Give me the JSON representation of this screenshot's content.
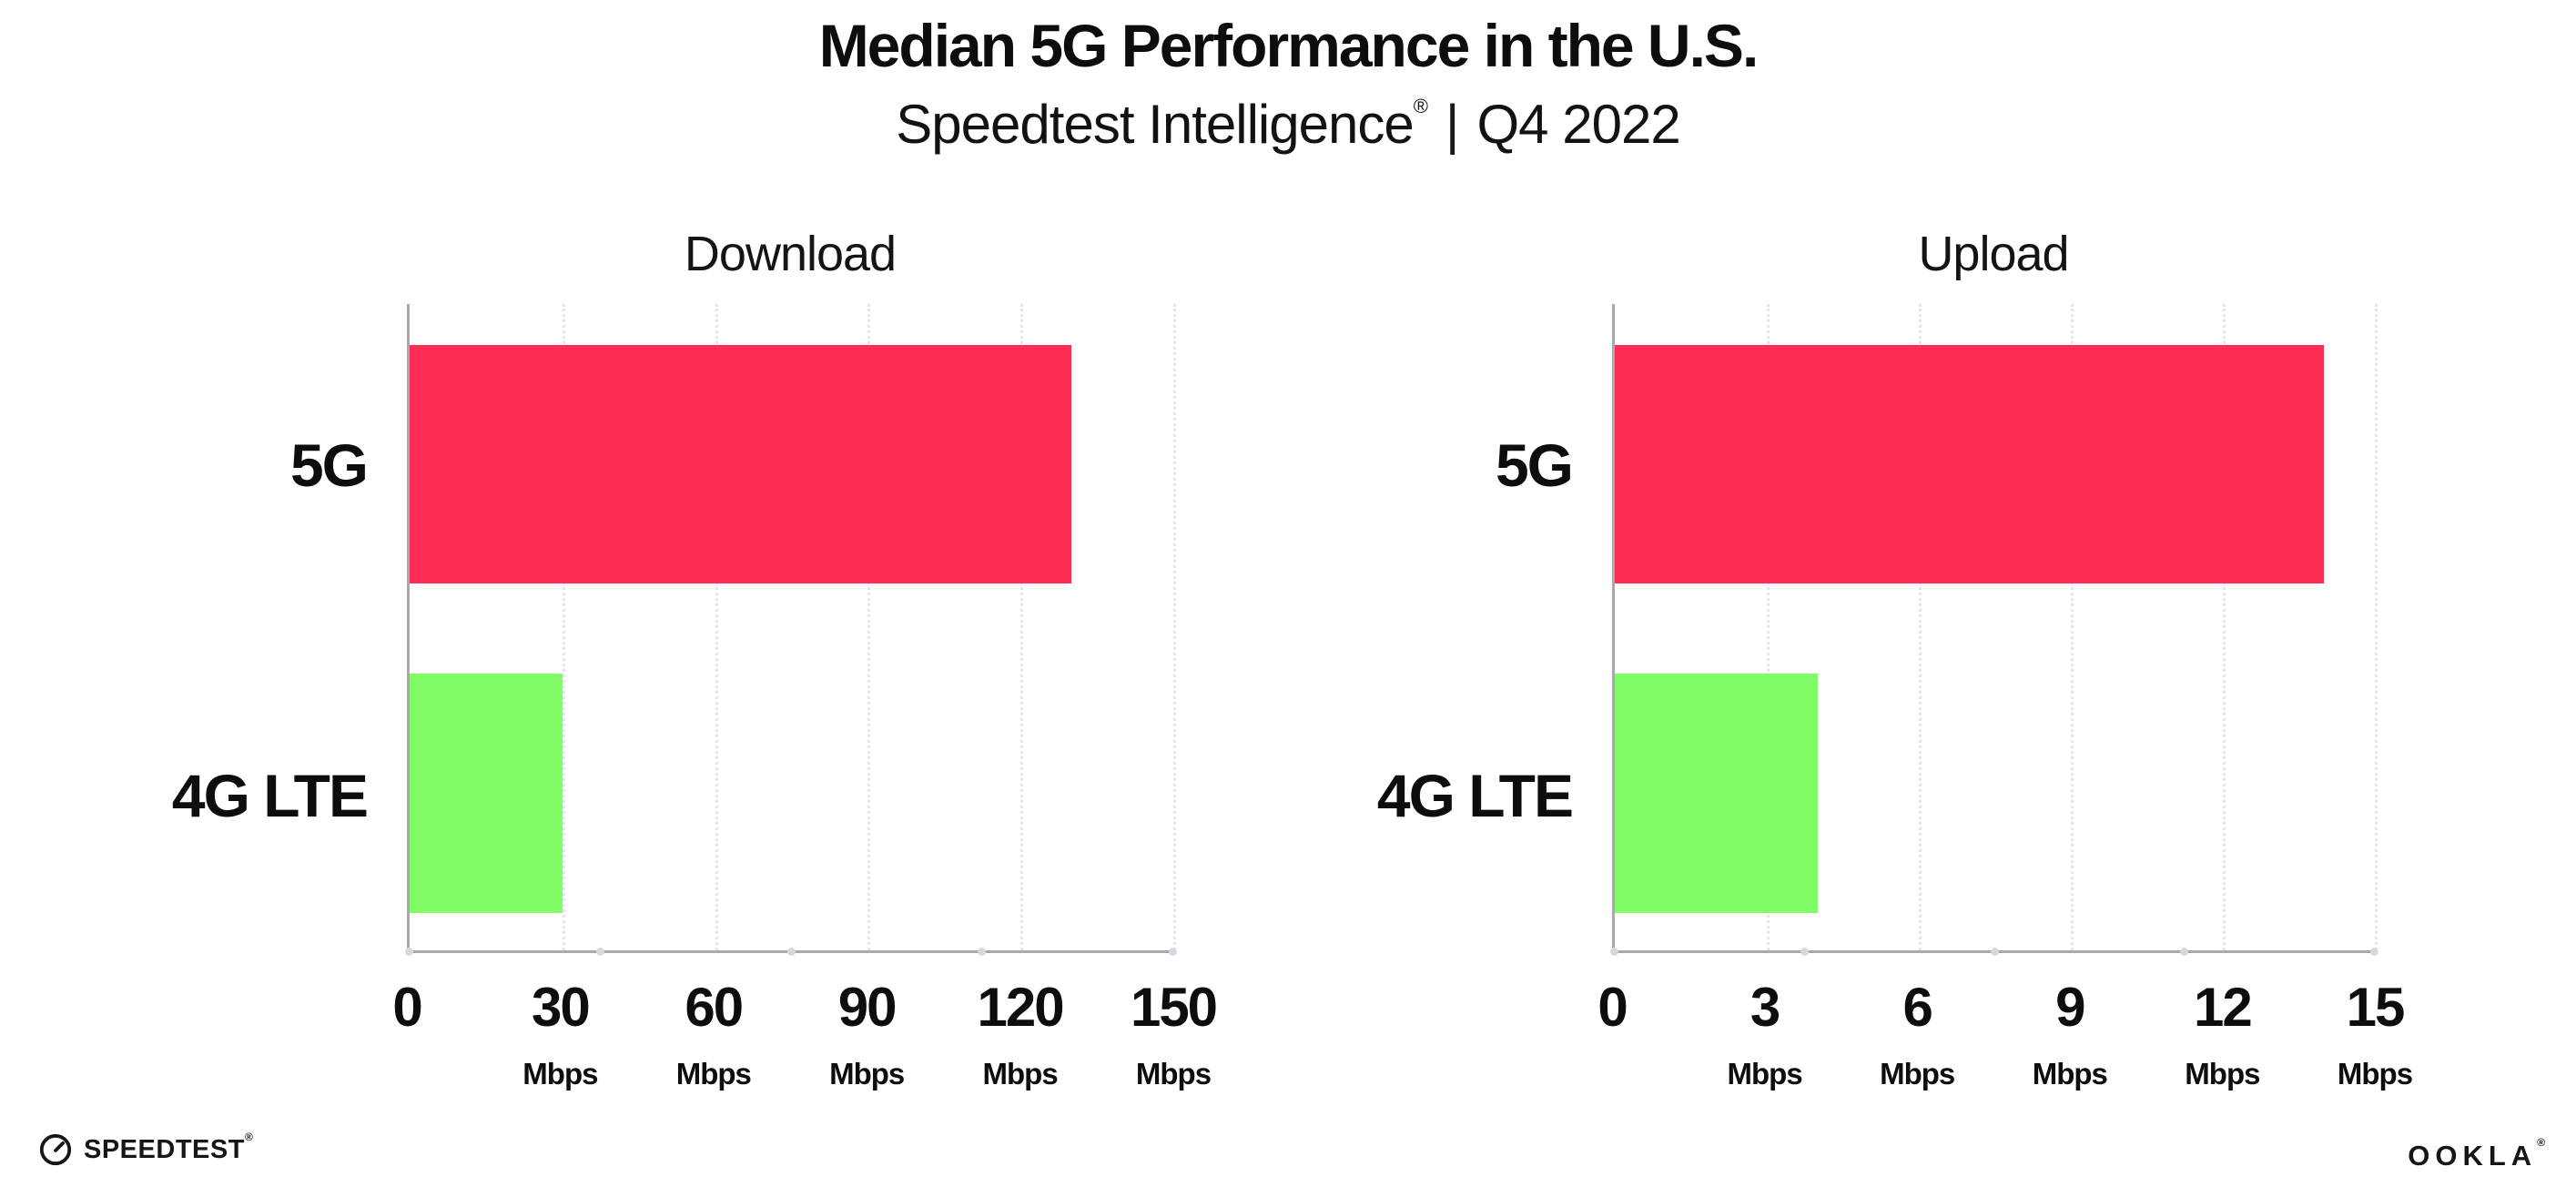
{
  "header": {
    "title": "Median 5G Performance in the U.S.",
    "subtitle": {
      "brand": "Speedtest Intelligence",
      "registered_mark": "®",
      "separator": "|",
      "period": "Q4 2022"
    }
  },
  "chart_data": [
    {
      "type": "bar",
      "orientation": "horizontal",
      "title": "Download",
      "categories": [
        "5G",
        "4G LTE"
      ],
      "values": [
        130,
        30
      ],
      "unit": "Mbps",
      "xlim": [
        0,
        150
      ],
      "xticks": [
        0,
        30,
        60,
        90,
        120,
        150
      ],
      "bar_colors": [
        "#fe2d55",
        "#80fc66"
      ],
      "grid": "vertical-dotted",
      "legend": "none"
    },
    {
      "type": "bar",
      "orientation": "horizontal",
      "title": "Upload",
      "categories": [
        "5G",
        "4G LTE"
      ],
      "values": [
        14,
        4
      ],
      "unit": "Mbps",
      "xlim": [
        0,
        15
      ],
      "xticks": [
        0,
        3,
        6,
        9,
        12,
        15
      ],
      "bar_colors": [
        "#fe2d55",
        "#80fc66"
      ],
      "grid": "vertical-dotted",
      "legend": "none"
    }
  ],
  "footer": {
    "speedtest_wordmark": "SPEEDTEST",
    "speedtest_mark": "®",
    "ookla_wordmark": "OOKLA",
    "ookla_mark": "®"
  },
  "colors": {
    "bar_5g": "#fe2d55",
    "bar_4g_lte": "#80fc66",
    "axis": "#a8a8ae",
    "gridline": "#e6e4ec",
    "text": "#0d0d0d"
  }
}
